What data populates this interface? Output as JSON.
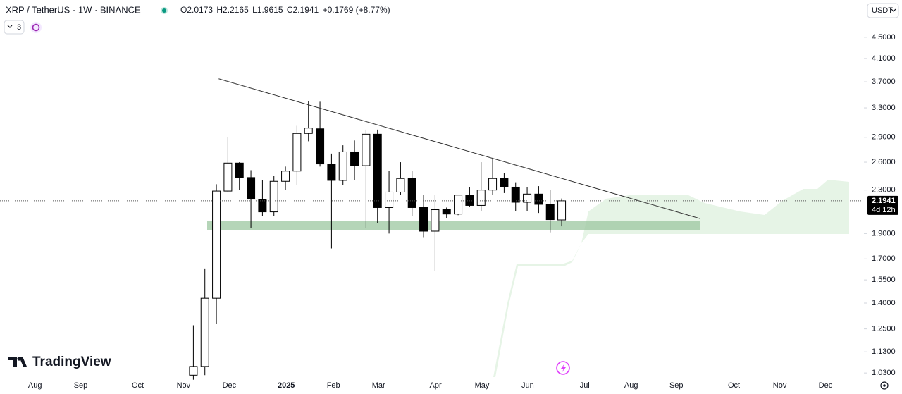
{
  "header": {
    "symbol": "XRP / TetherUS · 1W · BINANCE",
    "open": "O2.0173",
    "high": "H2.2165",
    "low": "L1.9615",
    "close": "C2.1941",
    "change": "+0.1769 (+8.77%)",
    "indicators": "3",
    "currency": "USDT",
    "countdown": "4d 12h",
    "brand": "TradingView"
  },
  "chart_data": {
    "type": "candlestick",
    "log": true,
    "ylim": [
      0.996,
      5.3
    ],
    "yticks": [
      {
        "value": 4.5,
        "label": "4.5000"
      },
      {
        "value": 4.1,
        "label": "4.1000"
      },
      {
        "value": 3.7,
        "label": "3.7000"
      },
      {
        "value": 3.3,
        "label": "3.3000"
      },
      {
        "value": 2.9,
        "label": "2.9000"
      },
      {
        "value": 2.6,
        "label": "2.6000"
      },
      {
        "value": 2.3,
        "label": "2.3000"
      },
      {
        "value": 1.9,
        "label": "1.9000"
      },
      {
        "value": 1.7,
        "label": "1.7000"
      },
      {
        "value": 1.55,
        "label": "1.5500"
      },
      {
        "value": 1.4,
        "label": "1.4000"
      },
      {
        "value": 1.25,
        "label": "1.2500"
      },
      {
        "value": 1.13,
        "label": "1.1300"
      },
      {
        "value": 1.03,
        "label": "1.0300"
      }
    ],
    "xlim": [
      -16.8,
      58.2
    ],
    "xticks": [
      {
        "value": -13.76,
        "label": "Aug"
      },
      {
        "value": -9.79,
        "label": "Sep"
      },
      {
        "value": -4.83,
        "label": "Oct"
      },
      {
        "value": -0.86,
        "label": "Nov"
      },
      {
        "value": 3.12,
        "label": "Dec"
      },
      {
        "value": 8.07,
        "label": "2025"
      },
      {
        "value": 12.17,
        "label": "Feb"
      },
      {
        "value": 16.09,
        "label": "Mar"
      },
      {
        "value": 21.04,
        "label": "Apr"
      },
      {
        "value": 25.08,
        "label": "May"
      },
      {
        "value": 29.05,
        "label": "Jun"
      },
      {
        "value": 34.0,
        "label": "Jul"
      },
      {
        "value": 38.04,
        "label": "Aug"
      },
      {
        "value": 41.96,
        "label": "Sep"
      },
      {
        "value": 46.97,
        "label": "Oct"
      },
      {
        "value": 50.95,
        "label": "Nov"
      },
      {
        "value": 54.92,
        "label": "Dec"
      }
    ],
    "up_color": "#ffffff",
    "down_color": "#000000",
    "candles": {
      "open": [
        1.02,
        1.06,
        1.43,
        2.29,
        2.59,
        2.43,
        2.21,
        2.09,
        2.39,
        2.5,
        2.95,
        3.01,
        2.58,
        2.4,
        2.72,
        2.56,
        2.94,
        2.13,
        2.28,
        2.42,
        2.13,
        1.92,
        2.11,
        2.07,
        2.25,
        2.15,
        2.3,
        2.42,
        2.33,
        2.18,
        2.26,
        2.16,
        2.0173
      ],
      "high": [
        1.27,
        1.63,
        2.36,
        2.9,
        2.6,
        2.51,
        2.4,
        2.45,
        2.55,
        3.05,
        3.4,
        3.39,
        2.7,
        2.8,
        2.86,
        3.0,
        3.0,
        2.5,
        2.6,
        2.5,
        2.25,
        2.25,
        2.13,
        2.25,
        2.33,
        2.6,
        2.65,
        2.48,
        2.38,
        2.33,
        2.34,
        2.3,
        2.2165
      ],
      "low": [
        1.0,
        1.02,
        1.28,
        2.28,
        2.3,
        1.95,
        2.05,
        2.05,
        2.3,
        2.35,
        2.85,
        2.55,
        1.78,
        2.35,
        2.4,
        1.95,
        1.99,
        1.9,
        2.25,
        2.05,
        1.87,
        1.61,
        2.03,
        2.06,
        2.14,
        2.1,
        2.25,
        2.27,
        2.1,
        2.1,
        2.08,
        1.91,
        1.9615
      ],
      "close": [
        1.06,
        1.43,
        2.29,
        2.59,
        2.43,
        2.21,
        2.09,
        2.39,
        2.5,
        2.95,
        3.02,
        2.58,
        2.4,
        2.72,
        2.56,
        2.94,
        2.13,
        2.28,
        2.42,
        2.13,
        1.92,
        2.11,
        2.07,
        2.25,
        2.15,
        2.3,
        2.42,
        2.33,
        2.18,
        2.26,
        2.16,
        2.02,
        2.1941
      ]
    },
    "trendline": {
      "x": [
        2.2,
        44.0
      ],
      "y": [
        3.75,
        2.03
      ],
      "color": "#333333"
    },
    "zone": {
      "x": [
        1.2,
        44.0
      ],
      "y": [
        1.93,
        2.01
      ],
      "color": "#9cc7a0"
    }
  }
}
